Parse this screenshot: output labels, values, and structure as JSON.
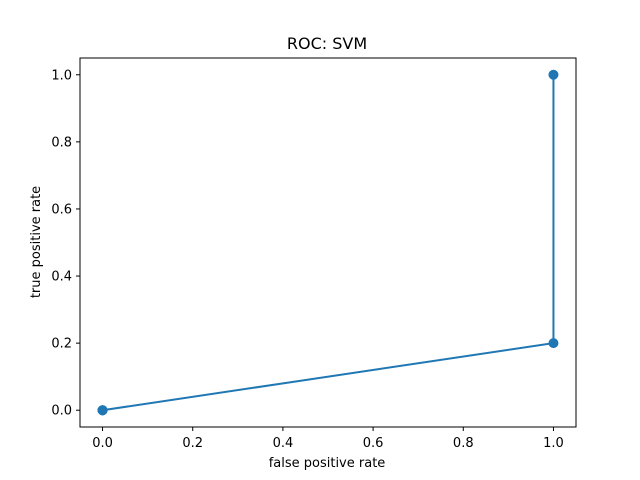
{
  "chart_data": {
    "type": "line",
    "title": "ROC: SVM",
    "xlabel": "false positive rate",
    "ylabel": "true positive rate",
    "xlim": [
      -0.05,
      1.05
    ],
    "ylim": [
      -0.05,
      1.05
    ],
    "x_ticks": [
      0.0,
      0.2,
      0.4,
      0.6,
      0.8,
      1.0
    ],
    "x_tick_labels": [
      "0.0",
      "0.2",
      "0.4",
      "0.6",
      "0.8",
      "1.0"
    ],
    "y_ticks": [
      0.0,
      0.2,
      0.4,
      0.6,
      0.8,
      1.0
    ],
    "y_tick_labels": [
      "0.0",
      "0.2",
      "0.4",
      "0.6",
      "0.8",
      "1.0"
    ],
    "grid": false,
    "legend": null,
    "series": [
      {
        "color": "#1f77b4",
        "marker": "circle",
        "x": [
          0.0,
          0.0,
          0.0,
          0.0,
          1.0,
          1.0
        ],
        "y": [
          0.0,
          0.0,
          0.0,
          0.0,
          0.2,
          1.0
        ]
      }
    ]
  }
}
